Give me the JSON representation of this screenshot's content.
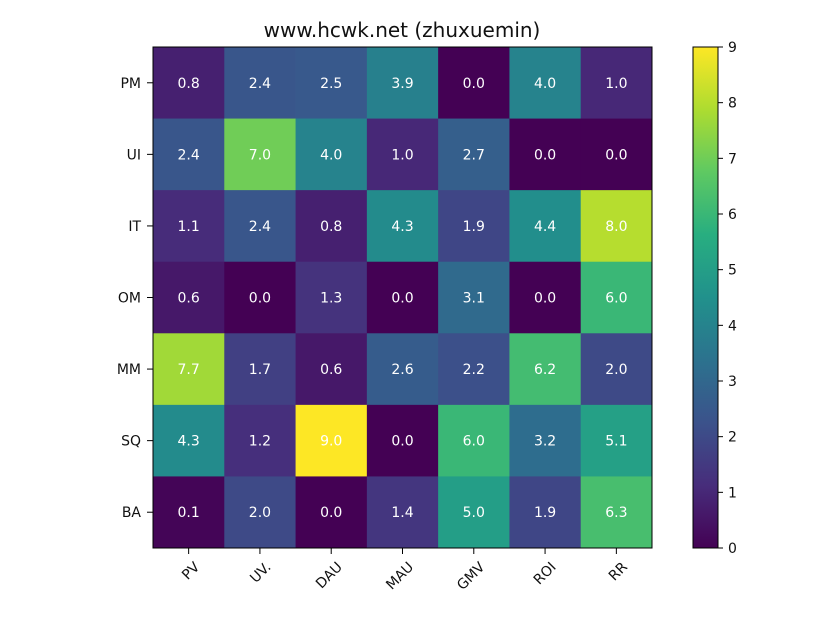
{
  "chart_data": {
    "type": "heatmap",
    "title": "www.hcwk.net (zhuxuemin)",
    "x_categories": [
      "PV",
      "UV.",
      "DAU",
      "MAU",
      "GMV",
      "ROI",
      "RR"
    ],
    "y_categories": [
      "PM",
      "UI",
      "IT",
      "OM",
      "MM",
      "SQ",
      "BA"
    ],
    "values": [
      [
        0.8,
        2.4,
        2.5,
        3.9,
        0.0,
        4.0,
        1.0
      ],
      [
        2.4,
        7.0,
        4.0,
        1.0,
        2.7,
        0.0,
        0.0
      ],
      [
        1.1,
        2.4,
        0.8,
        4.3,
        1.9,
        4.4,
        8.0
      ],
      [
        0.6,
        0.0,
        1.3,
        0.0,
        3.1,
        0.0,
        6.0
      ],
      [
        7.7,
        1.7,
        0.6,
        2.6,
        2.2,
        6.2,
        2.0
      ],
      [
        4.3,
        1.2,
        9.0,
        0.0,
        6.0,
        3.2,
        5.1
      ],
      [
        0.1,
        2.0,
        0.0,
        1.4,
        5.0,
        1.9,
        6.3
      ]
    ],
    "value_labels": [
      [
        "0.8",
        "2.4",
        "2.5",
        "3.9",
        "0.0",
        "4.0",
        "1.0"
      ],
      [
        "2.4",
        "7.0",
        "4.0",
        "1.0",
        "2.7",
        "0.0",
        "0.0"
      ],
      [
        "1.1",
        "2.4",
        "0.8",
        "4.3",
        "1.9",
        "4.4",
        "8.0"
      ],
      [
        "0.6",
        "0.0",
        "1.3",
        "0.0",
        "3.1",
        "0.0",
        "6.0"
      ],
      [
        "7.7",
        "1.7",
        "0.6",
        "2.6",
        "2.2",
        "6.2",
        "2.0"
      ],
      [
        "4.3",
        "1.2",
        "9.0",
        "0.0",
        "6.0",
        "3.2",
        "5.1"
      ],
      [
        "0.1",
        "2.0",
        "0.0",
        "1.4",
        "5.0",
        "1.9",
        "6.3"
      ]
    ],
    "colormap": "viridis",
    "vmin": 0,
    "vmax": 9,
    "colorbar_ticks": [
      "0",
      "1",
      "2",
      "3",
      "4",
      "5",
      "6",
      "7",
      "8",
      "9"
    ],
    "x_tick_rotation_deg": 45,
    "grid": false,
    "colorbar_placement": "right",
    "label_color": "#ffffff"
  }
}
